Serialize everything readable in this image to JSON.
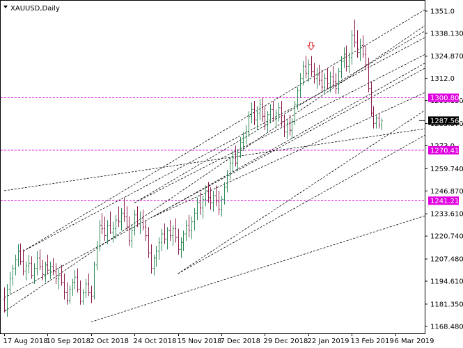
{
  "chart_data": {
    "type": "bar",
    "title": "XAUUSD,Daily",
    "symbol": "XAUUSD",
    "timeframe": "Daily",
    "ylim": [
      1164.4,
      1357.0
    ],
    "y_ticks": [
      1351.0,
      1338.13,
      1324.87,
      1312.0,
      1299.13,
      1285.87,
      1273.0,
      1259.74,
      1246.87,
      1233.61,
      1220.74,
      1207.48,
      1194.61,
      1181.35,
      1168.48
    ],
    "x_labels": [
      "17 Aug 2018",
      "10 Sep 2018",
      "2 Oct 2018",
      "24 Oct 2018",
      "15 Nov 2018",
      "7 Dec 2018",
      "29 Dec 2018",
      "22 Jan 2019",
      "13 Feb 2019",
      "6 Mar 2019"
    ],
    "x_label_bars": [
      0,
      16,
      32,
      48,
      64,
      80,
      96,
      112,
      128,
      144
    ],
    "current_price": "1287.560",
    "horizontal_levels": [
      "1300.808",
      "1270.417",
      "1241.214"
    ],
    "grid": false,
    "colors": {
      "up_bar": "#2e8b57",
      "down_bar": "#8b1a4a",
      "level_line": "#e000e0",
      "trend_line": "#000000",
      "arrow": "#e02020",
      "current_tag_bg": "#000000",
      "level_tag_bg": "#e000e0"
    },
    "arrow_marker": {
      "bar": 113,
      "price": 1330.5,
      "icon": "down-arrow-icon"
    },
    "ohlc": [
      [
        1184.0,
        1191.0,
        1176.5,
        1177.8
      ],
      [
        1178.0,
        1193.0,
        1174.0,
        1190.0
      ],
      [
        1190.0,
        1200.0,
        1187.0,
        1196.0
      ],
      [
        1196.0,
        1204.0,
        1192.0,
        1202.0
      ],
      [
        1202.0,
        1210.0,
        1198.0,
        1207.0
      ],
      [
        1207.0,
        1216.0,
        1203.0,
        1212.0
      ],
      [
        1212.0,
        1216.5,
        1204.0,
        1206.0
      ],
      [
        1206.0,
        1213.0,
        1198.0,
        1200.5
      ],
      [
        1200.5,
        1206.0,
        1195.0,
        1203.5
      ],
      [
        1203.5,
        1210.0,
        1199.0,
        1205.0
      ],
      [
        1205.0,
        1209.0,
        1196.0,
        1198.0
      ],
      [
        1198.0,
        1205.0,
        1193.0,
        1202.0
      ],
      [
        1202.0,
        1212.0,
        1198.0,
        1208.0
      ],
      [
        1208.0,
        1213.0,
        1201.0,
        1203.0
      ],
      [
        1203.0,
        1207.0,
        1195.0,
        1198.5
      ],
      [
        1198.5,
        1206.0,
        1194.0,
        1204.0
      ],
      [
        1204.0,
        1210.0,
        1199.0,
        1201.0
      ],
      [
        1201.0,
        1206.0,
        1196.0,
        1203.0
      ],
      [
        1203.0,
        1208.0,
        1198.0,
        1200.0
      ],
      [
        1200.0,
        1205.0,
        1193.0,
        1196.0
      ],
      [
        1196.0,
        1202.0,
        1190.0,
        1198.0
      ],
      [
        1198.0,
        1204.0,
        1192.0,
        1194.0
      ],
      [
        1194.0,
        1199.0,
        1184.0,
        1188.0
      ],
      [
        1188.0,
        1194.0,
        1181.0,
        1183.5
      ],
      [
        1183.5,
        1192.0,
        1181.5,
        1190.0
      ],
      [
        1190.0,
        1196.0,
        1186.0,
        1194.0
      ],
      [
        1194.0,
        1201.0,
        1190.0,
        1197.0
      ],
      [
        1197.0,
        1202.0,
        1188.0,
        1190.0
      ],
      [
        1190.0,
        1195.0,
        1181.0,
        1183.0
      ],
      [
        1183.0,
        1190.0,
        1181.0,
        1188.0
      ],
      [
        1188.0,
        1196.0,
        1185.0,
        1193.0
      ],
      [
        1193.0,
        1199.0,
        1186.0,
        1188.0
      ],
      [
        1188.0,
        1192.0,
        1182.0,
        1186.0
      ],
      [
        1186.0,
        1206.0,
        1184.0,
        1204.0
      ],
      [
        1204.0,
        1218.0,
        1201.0,
        1215.0
      ],
      [
        1215.0,
        1230.0,
        1212.0,
        1227.0
      ],
      [
        1227.0,
        1234.0,
        1222.0,
        1225.0
      ],
      [
        1225.0,
        1232.0,
        1218.0,
        1221.0
      ],
      [
        1221.0,
        1230.0,
        1216.0,
        1227.0
      ],
      [
        1227.0,
        1235.0,
        1222.0,
        1223.0
      ],
      [
        1223.0,
        1229.0,
        1217.0,
        1225.0
      ],
      [
        1225.0,
        1233.0,
        1219.0,
        1230.0
      ],
      [
        1230.0,
        1238.0,
        1226.0,
        1229.0
      ],
      [
        1229.0,
        1237.0,
        1224.0,
        1234.0
      ],
      [
        1234.0,
        1243.0,
        1229.0,
        1232.0
      ],
      [
        1232.0,
        1238.0,
        1224.0,
        1226.0
      ],
      [
        1226.0,
        1232.0,
        1215.0,
        1218.0
      ],
      [
        1218.0,
        1227.0,
        1214.0,
        1224.0
      ],
      [
        1224.0,
        1236.0,
        1221.0,
        1233.0
      ],
      [
        1233.0,
        1238.0,
        1226.0,
        1228.0
      ],
      [
        1228.0,
        1235.0,
        1222.0,
        1231.0
      ],
      [
        1231.0,
        1236.0,
        1224.0,
        1226.0
      ],
      [
        1226.0,
        1230.0,
        1218.0,
        1221.0
      ],
      [
        1221.0,
        1226.0,
        1208.0,
        1211.0
      ],
      [
        1211.0,
        1216.0,
        1199.0,
        1202.0
      ],
      [
        1202.0,
        1210.0,
        1198.0,
        1208.0
      ],
      [
        1208.0,
        1215.0,
        1203.0,
        1212.0
      ],
      [
        1212.0,
        1220.0,
        1207.0,
        1217.0
      ],
      [
        1217.0,
        1225.0,
        1212.0,
        1222.0
      ],
      [
        1222.0,
        1228.0,
        1216.0,
        1219.0
      ],
      [
        1219.0,
        1226.0,
        1213.0,
        1224.0
      ],
      [
        1224.0,
        1230.0,
        1218.0,
        1221.0
      ],
      [
        1221.0,
        1227.0,
        1215.0,
        1225.0
      ],
      [
        1225.0,
        1231.0,
        1217.0,
        1220.0
      ],
      [
        1220.0,
        1225.0,
        1210.0,
        1213.0
      ],
      [
        1213.0,
        1220.0,
        1208.0,
        1217.0
      ],
      [
        1217.0,
        1224.0,
        1212.0,
        1222.0
      ],
      [
        1222.0,
        1230.0,
        1218.0,
        1227.0
      ],
      [
        1227.0,
        1233.0,
        1220.0,
        1224.0
      ],
      [
        1224.0,
        1232.0,
        1219.0,
        1229.0
      ],
      [
        1229.0,
        1237.0,
        1224.0,
        1234.0
      ],
      [
        1234.0,
        1243.0,
        1230.0,
        1240.0
      ],
      [
        1240.0,
        1246.0,
        1233.0,
        1237.0
      ],
      [
        1237.0,
        1244.0,
        1231.0,
        1242.0
      ],
      [
        1242.0,
        1250.0,
        1238.0,
        1247.0
      ],
      [
        1247.0,
        1252.0,
        1240.0,
        1243.0
      ],
      [
        1243.0,
        1249.0,
        1236.0,
        1240.0
      ],
      [
        1240.0,
        1247.0,
        1235.0,
        1244.0
      ],
      [
        1244.0,
        1250.0,
        1238.0,
        1241.0
      ],
      [
        1241.0,
        1247.0,
        1233.0,
        1236.0
      ],
      [
        1236.0,
        1244.0,
        1232.0,
        1242.0
      ],
      [
        1242.0,
        1252.0,
        1239.0,
        1249.0
      ],
      [
        1249.0,
        1259.0,
        1246.0,
        1256.0
      ],
      [
        1256.0,
        1266.0,
        1253.0,
        1263.0
      ],
      [
        1263.0,
        1270.0,
        1258.0,
        1266.0
      ],
      [
        1266.0,
        1273.0,
        1261.0,
        1263.0
      ],
      [
        1263.0,
        1271.0,
        1259.0,
        1269.0
      ],
      [
        1269.0,
        1278.0,
        1266.0,
        1275.0
      ],
      [
        1275.0,
        1281.0,
        1270.0,
        1278.0
      ],
      [
        1278.0,
        1285.0,
        1274.0,
        1281.0
      ],
      [
        1281.0,
        1293.0,
        1278.0,
        1290.0
      ],
      [
        1290.0,
        1298.0,
        1286.0,
        1294.0
      ],
      [
        1294.0,
        1299.0,
        1285.0,
        1288.0
      ],
      [
        1288.0,
        1296.0,
        1282.0,
        1292.0
      ],
      [
        1292.0,
        1300.0,
        1288.0,
        1297.0
      ],
      [
        1297.0,
        1301.0,
        1287.0,
        1290.0
      ],
      [
        1290.0,
        1296.0,
        1282.0,
        1285.0
      ],
      [
        1285.0,
        1293.0,
        1281.0,
        1291.0
      ],
      [
        1291.0,
        1297.0,
        1286.0,
        1294.0
      ],
      [
        1294.0,
        1299.0,
        1287.0,
        1289.0
      ],
      [
        1289.0,
        1294.0,
        1283.0,
        1292.0
      ],
      [
        1292.0,
        1298.0,
        1287.0,
        1295.0
      ],
      [
        1295.0,
        1299.0,
        1284.0,
        1287.0
      ],
      [
        1287.0,
        1291.0,
        1278.0,
        1281.0
      ],
      [
        1281.0,
        1288.0,
        1277.0,
        1286.0
      ],
      [
        1286.0,
        1291.0,
        1279.0,
        1282.0
      ],
      [
        1282.0,
        1289.0,
        1277.0,
        1287.0
      ],
      [
        1287.0,
        1299.0,
        1285.0,
        1297.0
      ],
      [
        1297.0,
        1307.0,
        1294.0,
        1305.0
      ],
      [
        1305.0,
        1315.0,
        1301.0,
        1312.0
      ],
      [
        1312.0,
        1322.0,
        1308.0,
        1319.0
      ],
      [
        1319.0,
        1325.0,
        1312.0,
        1315.0
      ],
      [
        1315.0,
        1323.0,
        1310.0,
        1320.0
      ],
      [
        1320.0,
        1325.0,
        1313.0,
        1316.0
      ],
      [
        1316.0,
        1321.0,
        1309.0,
        1312.0
      ],
      [
        1312.0,
        1318.0,
        1306.0,
        1314.0
      ],
      [
        1314.0,
        1320.0,
        1308.0,
        1311.0
      ],
      [
        1311.0,
        1317.0,
        1304.0,
        1307.0
      ],
      [
        1307.0,
        1315.0,
        1303.0,
        1312.0
      ],
      [
        1312.0,
        1318.0,
        1306.0,
        1309.0
      ],
      [
        1309.0,
        1316.0,
        1304.0,
        1313.0
      ],
      [
        1313.0,
        1319.0,
        1307.0,
        1310.0
      ],
      [
        1310.0,
        1315.0,
        1303.0,
        1306.0
      ],
      [
        1306.0,
        1318.0,
        1303.0,
        1316.0
      ],
      [
        1316.0,
        1325.0,
        1312.0,
        1322.0
      ],
      [
        1322.0,
        1330.0,
        1318.0,
        1326.0
      ],
      [
        1326.0,
        1331.0,
        1316.0,
        1319.0
      ],
      [
        1319.0,
        1327.0,
        1315.0,
        1324.0
      ],
      [
        1324.0,
        1340.0,
        1320.0,
        1337.0
      ],
      [
        1337.0,
        1346.0,
        1330.0,
        1333.0
      ],
      [
        1333.0,
        1340.0,
        1324.0,
        1327.0
      ],
      [
        1327.0,
        1335.0,
        1322.0,
        1331.0
      ],
      [
        1331.0,
        1337.0,
        1324.0,
        1326.0
      ],
      [
        1326.0,
        1331.0,
        1317.0,
        1320.0
      ],
      [
        1320.0,
        1324.0,
        1304.0,
        1306.0
      ],
      [
        1306.0,
        1310.0,
        1290.0,
        1292.0
      ],
      [
        1292.0,
        1296.0,
        1283.0,
        1286.0
      ],
      [
        1286.0,
        1291.0,
        1283.0,
        1289.0
      ],
      [
        1289.0,
        1292.0,
        1283.0,
        1285.0
      ],
      [
        1285.0,
        1289.0,
        1282.0,
        1287.56
      ]
    ],
    "trendlines": [
      [
        0,
        1177.0,
        190,
        1380.0
      ],
      [
        0,
        1185.0,
        190,
        1348.0
      ],
      [
        0,
        1247.0,
        190,
        1291.0
      ],
      [
        7,
        1212.0,
        190,
        1385.0
      ],
      [
        7,
        1212.0,
        190,
        1365.0
      ],
      [
        48,
        1240.0,
        190,
        1372.0
      ],
      [
        48,
        1240.0,
        190,
        1354.0
      ],
      [
        55,
        1232.0,
        190,
        1352.0
      ],
      [
        55,
        1232.0,
        190,
        1329.0
      ],
      [
        64,
        1199.0,
        190,
        1330.0
      ],
      [
        64,
        1199.0,
        190,
        1310.0
      ],
      [
        32,
        1171.0,
        190,
        1250.0
      ]
    ]
  }
}
